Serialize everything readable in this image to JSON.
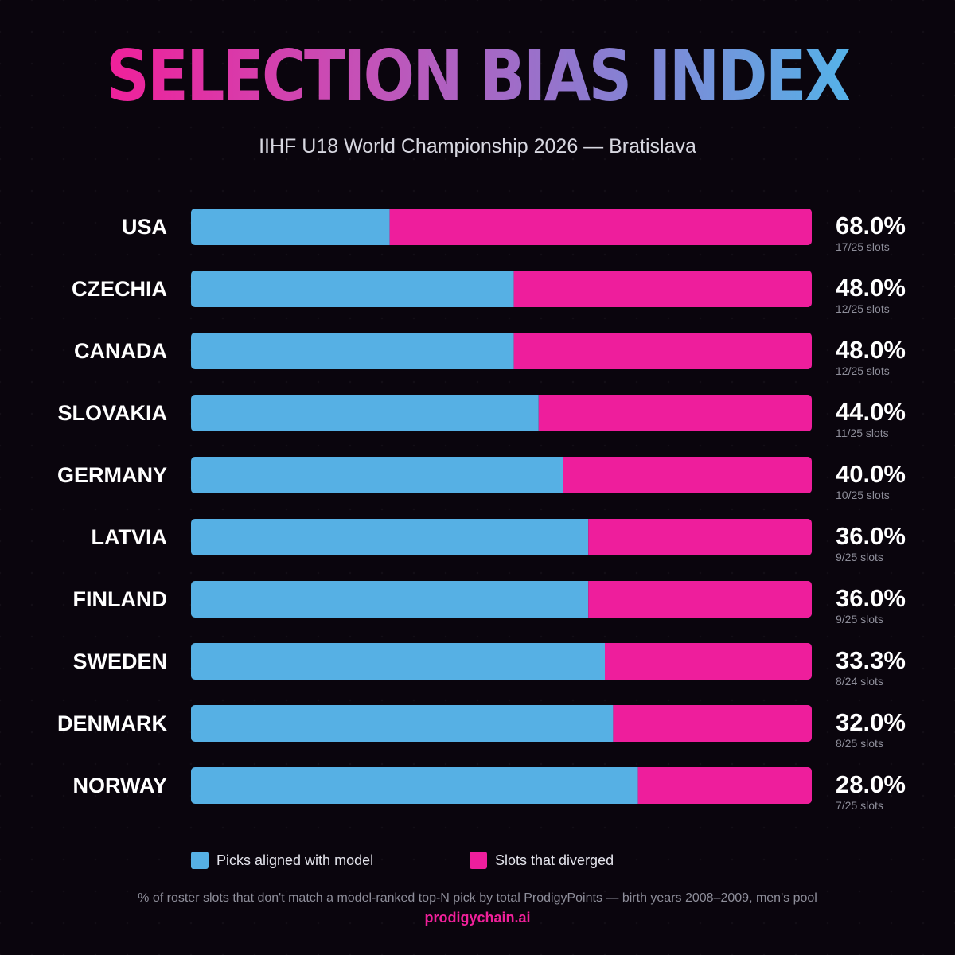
{
  "title": "SELECTION BIAS INDEX",
  "subtitle": "IIHF U18 World Championship 2026 — Bratislava",
  "colors": {
    "aligned": "#56b0e4",
    "diverged": "#ee1e9c",
    "background": "#0a050d"
  },
  "chart_data": {
    "type": "bar",
    "orientation": "horizontal",
    "stacked": true,
    "normalized": true,
    "categories": [
      "USA",
      "CZECHIA",
      "CANADA",
      "SLOVAKIA",
      "GERMANY",
      "LATVIA",
      "FINLAND",
      "SWEDEN",
      "DENMARK",
      "NORWAY"
    ],
    "series": [
      {
        "name": "Picks aligned with model",
        "values": [
          8,
          13,
          13,
          14,
          15,
          16,
          16,
          16,
          17,
          18
        ]
      },
      {
        "name": "Slots that diverged",
        "values": [
          17,
          12,
          12,
          11,
          10,
          9,
          9,
          8,
          8,
          7
        ]
      }
    ],
    "percent_labels": [
      "68.0%",
      "48.0%",
      "48.0%",
      "44.0%",
      "40.0%",
      "36.0%",
      "36.0%",
      "33.3%",
      "32.0%",
      "28.0%"
    ],
    "slot_labels": [
      "17/25 slots",
      "12/25 slots",
      "12/25 slots",
      "11/25 slots",
      "10/25 slots",
      "9/25 slots",
      "9/25 slots",
      "8/24 slots",
      "8/25 slots",
      "7/25 slots"
    ],
    "legend_position": "bottom",
    "grid": false
  },
  "legend": {
    "aligned_label": "Picks aligned with model",
    "diverged_label": "Slots that diverged"
  },
  "footnote": "% of roster slots that don't match a model-ranked top-N pick by total ProdigyPoints — birth years 2008–2009, men's pool",
  "brand": "prodigychain.ai"
}
